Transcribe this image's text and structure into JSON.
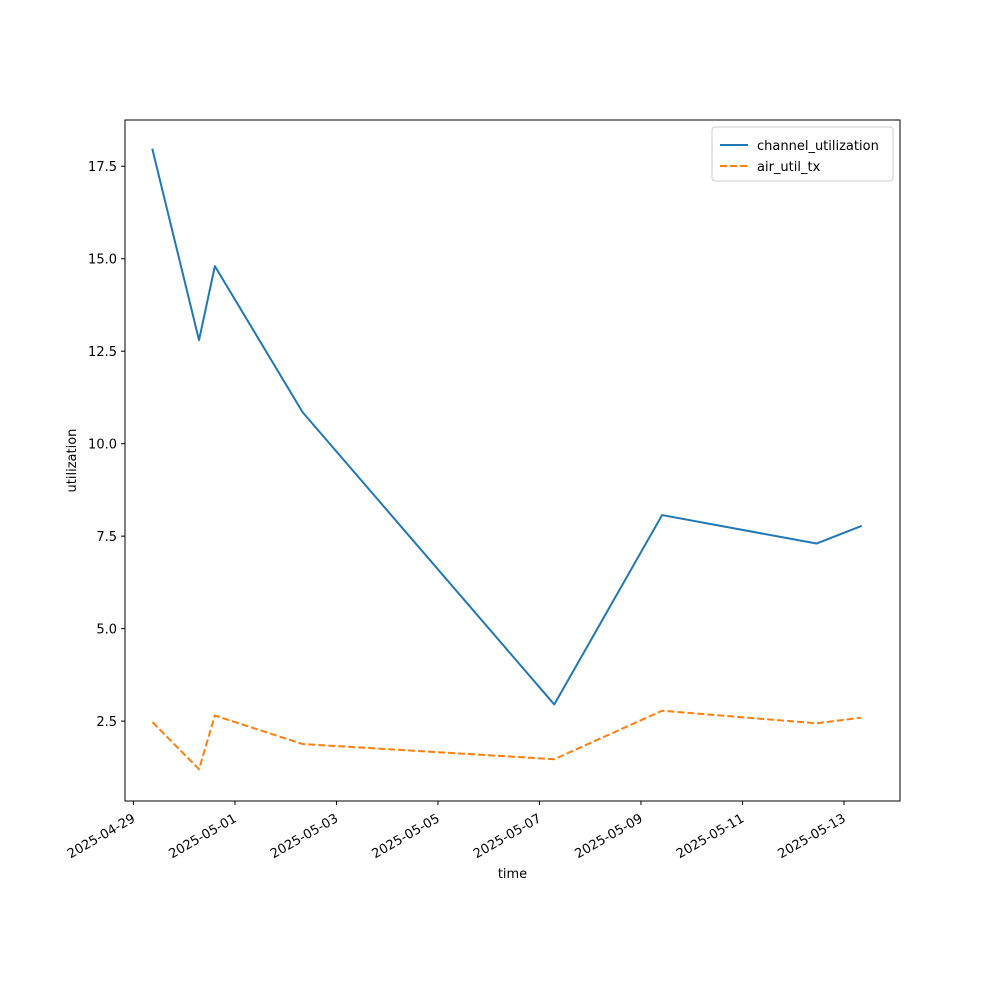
{
  "chart_data": {
    "type": "line",
    "title": "",
    "xlabel": "time",
    "ylabel": "utilization",
    "x_scale": "date",
    "xlim": [
      "2025-04-28T20:00",
      "2025-05-14T02:30"
    ],
    "ylim": [
      0.34,
      18.75
    ],
    "x_ticks": [
      "2025-04-29",
      "2025-05-01",
      "2025-05-03",
      "2025-05-05",
      "2025-05-07",
      "2025-05-09",
      "2025-05-11",
      "2025-05-13"
    ],
    "y_ticks": [
      2.5,
      5.0,
      7.5,
      10.0,
      12.5,
      15.0,
      17.5
    ],
    "y_tick_labels": [
      "2.5",
      "5.0",
      "7.5",
      "10.0",
      "12.5",
      "15.0",
      "17.5"
    ],
    "grid": false,
    "legend_position": "top-right",
    "series": [
      {
        "name": "channel_utilization",
        "color": "#1f77b4",
        "style": "solid",
        "points": [
          {
            "x": "2025-04-29T09:00",
            "y": 17.95
          },
          {
            "x": "2025-04-30T07:00",
            "y": 12.8
          },
          {
            "x": "2025-04-30T14:30",
            "y": 14.8
          },
          {
            "x": "2025-05-02T08:00",
            "y": 10.85
          },
          {
            "x": "2025-05-07T07:00",
            "y": 2.95
          },
          {
            "x": "2025-05-09T10:00",
            "y": 8.07
          },
          {
            "x": "2025-05-12T11:00",
            "y": 7.3
          },
          {
            "x": "2025-05-13T08:00",
            "y": 7.77
          }
        ]
      },
      {
        "name": "air_util_tx",
        "color": "#ff7f0e",
        "style": "dashed",
        "points": [
          {
            "x": "2025-04-29T09:00",
            "y": 2.47
          },
          {
            "x": "2025-04-30T07:00",
            "y": 1.2
          },
          {
            "x": "2025-04-30T14:30",
            "y": 2.65
          },
          {
            "x": "2025-05-02T08:00",
            "y": 1.88
          },
          {
            "x": "2025-05-07T07:00",
            "y": 1.47
          },
          {
            "x": "2025-05-09T10:00",
            "y": 2.78
          },
          {
            "x": "2025-05-12T11:00",
            "y": 2.44
          },
          {
            "x": "2025-05-13T08:00",
            "y": 2.59
          }
        ]
      }
    ]
  }
}
